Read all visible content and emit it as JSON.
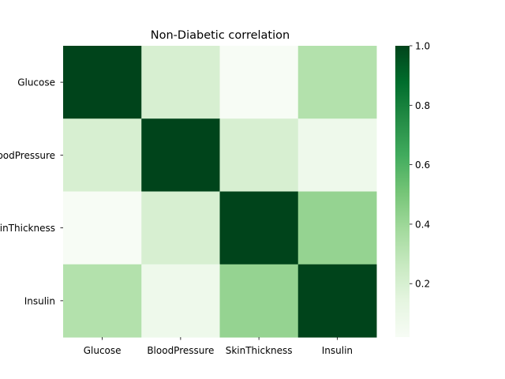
{
  "chart_data": {
    "type": "heatmap",
    "title": "Non-Diabetic correlation",
    "row_labels": [
      "Glucose",
      "BloodPressure",
      "SkinThickness",
      "Insulin"
    ],
    "col_labels": [
      "Glucose",
      "BloodPressure",
      "SkinThickness",
      "Insulin"
    ],
    "values": [
      [
        1.0,
        0.2,
        0.02,
        0.33
      ],
      [
        0.2,
        1.0,
        0.2,
        0.08
      ],
      [
        0.02,
        0.2,
        1.0,
        0.42
      ],
      [
        0.33,
        0.08,
        0.42,
        1.0
      ]
    ],
    "colorbar": {
      "vmin": 0.02,
      "vmax": 1.0,
      "ticks": [
        0.2,
        0.4,
        0.6,
        0.8,
        1.0
      ],
      "tick_labels": [
        "0.2",
        "0.4",
        "0.6",
        "0.8",
        "1.0"
      ],
      "colormap": "Greens",
      "colors": {
        "low": "#f7fcf5",
        "high": "#00441b"
      }
    },
    "grid": false,
    "legend": "colorbar-right"
  }
}
